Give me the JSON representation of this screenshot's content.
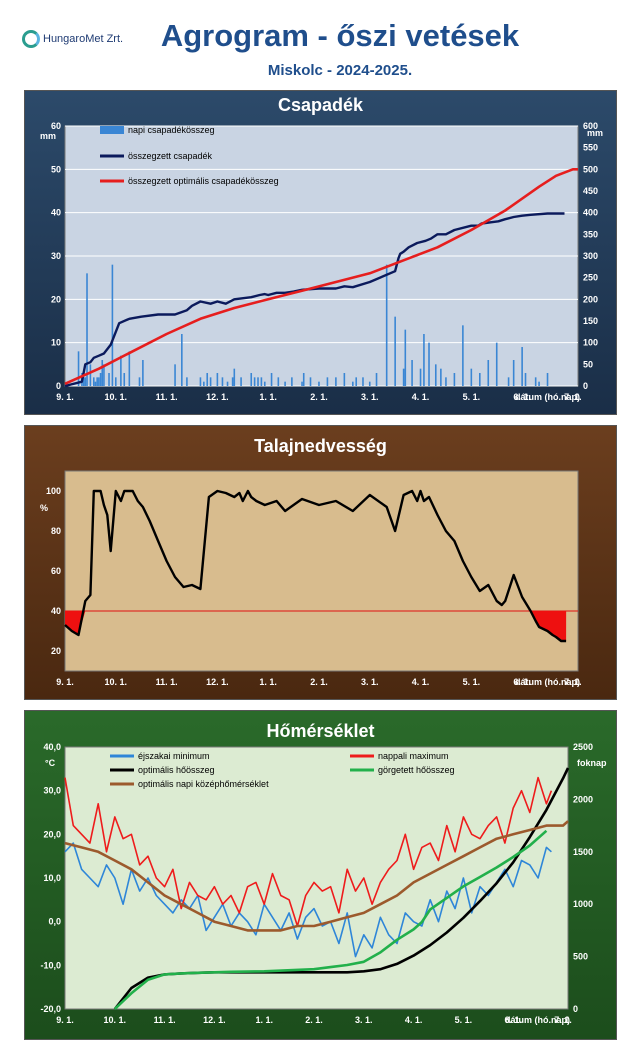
{
  "header": {
    "logo_text": "HungaroMet Zrt.",
    "title": "Agrogram - őszi vetések",
    "subtitle": "Miskolc  - 2024-2025."
  },
  "x_axis": {
    "ticks": [
      "9. 1.",
      "10. 1.",
      "11. 1.",
      "12. 1.",
      "1. 1.",
      "2. 1.",
      "3. 1.",
      "4. 1.",
      "5. 1.",
      "6. 1.",
      "7. 1."
    ],
    "label": "dátum (hó.nap)"
  },
  "chart_data": [
    {
      "type": "bar",
      "title": "Csapadék",
      "ylabel": "mm",
      "y2label": "mm",
      "ylim": [
        0,
        60
      ],
      "y2lim": [
        0,
        600
      ],
      "yticks": [
        "0",
        "10",
        "20",
        "30",
        "40",
        "50",
        "60"
      ],
      "y2ticks": [
        "0",
        "50",
        "100",
        "150",
        "200",
        "250",
        "300",
        "350",
        "400",
        "450",
        "500",
        "550",
        "600"
      ],
      "xlim": [
        0,
        303
      ],
      "series": [
        {
          "name": "napi csapadékösszeg",
          "kind": "bar",
          "axis": "left",
          "color": "#3a86d4",
          "x": [
            8,
            10,
            11,
            12,
            13,
            15,
            17,
            18,
            19,
            20,
            21,
            22,
            23,
            26,
            28,
            30,
            33,
            35,
            38,
            44,
            46,
            65,
            69,
            72,
            80,
            82,
            84,
            86,
            90,
            93,
            96,
            99,
            100,
            104,
            110,
            112,
            114,
            116,
            118,
            122,
            126,
            130,
            134,
            140,
            141,
            145,
            150,
            155,
            160,
            165,
            170,
            172,
            176,
            180,
            184,
            190,
            195,
            200,
            201,
            205,
            210,
            212,
            215,
            219,
            222,
            225,
            230,
            235,
            240,
            245,
            250,
            255,
            262,
            265,
            270,
            272,
            278,
            280,
            285
          ],
          "y": [
            8,
            3,
            2,
            2,
            26,
            5,
            2,
            1,
            2,
            2,
            3,
            6,
            5,
            3,
            28,
            2,
            7,
            3,
            8,
            2,
            6,
            5,
            12,
            2,
            2,
            1,
            3,
            2,
            3,
            2,
            1,
            2,
            4,
            2,
            3,
            2,
            2,
            2,
            1,
            3,
            2,
            1,
            2,
            1,
            3,
            2,
            1,
            2,
            2,
            3,
            1,
            2,
            2,
            1,
            3,
            28,
            16,
            4,
            13,
            6,
            4,
            12,
            10,
            5,
            4,
            2,
            3,
            14,
            4,
            3,
            6,
            10,
            2,
            6,
            9,
            3,
            2,
            1,
            3
          ]
        },
        {
          "name": "összegzett csapadék",
          "kind": "line",
          "axis": "right",
          "color": "#0b1a5c",
          "x": [
            0,
            10,
            12,
            15,
            17,
            20,
            23,
            27,
            32,
            38,
            45,
            55,
            65,
            72,
            75,
            80,
            86,
            90,
            95,
            100,
            110,
            115,
            118,
            120,
            125,
            130,
            135,
            140,
            150,
            160,
            165,
            170,
            180,
            195,
            197,
            198,
            200,
            203,
            208,
            213,
            216,
            220,
            225,
            230,
            240,
            244,
            246,
            252,
            256,
            260,
            265,
            270,
            275,
            285,
            295
          ],
          "y": [
            0,
            10,
            50,
            55,
            65,
            70,
            75,
            95,
            145,
            155,
            160,
            165,
            165,
            175,
            185,
            195,
            190,
            195,
            190,
            200,
            205,
            210,
            212,
            210,
            215,
            215,
            218,
            222,
            225,
            225,
            230,
            228,
            240,
            265,
            295,
            305,
            310,
            320,
            330,
            335,
            340,
            350,
            350,
            360,
            370,
            370,
            375,
            378,
            380,
            385,
            390,
            393,
            395,
            398,
            398
          ]
        },
        {
          "name": "összegzett optimális csapadékösszeg",
          "kind": "line",
          "axis": "right",
          "color": "#e61e1e",
          "x": [
            0,
            20,
            40,
            60,
            80,
            100,
            120,
            140,
            160,
            180,
            200,
            220,
            240,
            260,
            280,
            290,
            300,
            303
          ],
          "y": [
            5,
            40,
            80,
            120,
            155,
            180,
            200,
            220,
            240,
            260,
            290,
            320,
            360,
            405,
            460,
            485,
            500,
            500
          ]
        }
      ]
    },
    {
      "type": "line",
      "title": "Talajnedvesség",
      "ylabel": "%",
      "ylim": [
        10,
        110
      ],
      "yticks": [
        "20",
        "40",
        "60",
        "80",
        "100"
      ],
      "xlim": [
        0,
        303
      ],
      "threshold": 40,
      "series": [
        {
          "name": "talajnedvesség",
          "color": "#000000",
          "x": [
            0,
            4,
            8,
            12,
            15,
            17,
            19,
            21,
            23,
            25,
            27,
            30,
            33,
            35,
            37,
            40,
            43,
            46,
            50,
            55,
            60,
            65,
            70,
            75,
            80,
            85,
            90,
            95,
            100,
            103,
            105,
            108,
            110,
            113,
            118,
            125,
            130,
            140,
            150,
            160,
            170,
            180,
            190,
            195,
            200,
            205,
            208,
            210,
            212,
            215,
            220,
            225,
            230,
            235,
            240,
            245,
            250,
            255,
            258,
            260,
            265,
            270,
            275,
            278,
            280,
            285,
            288,
            290,
            293,
            296
          ],
          "y": [
            33,
            30,
            28,
            45,
            48,
            100,
            100,
            100,
            93,
            88,
            70,
            100,
            95,
            100,
            100,
            100,
            95,
            92,
            85,
            75,
            65,
            57,
            52,
            53,
            51,
            97,
            100,
            99,
            97,
            99,
            95,
            100,
            97,
            95,
            93,
            95,
            90,
            96,
            93,
            95,
            90,
            98,
            92,
            80,
            98,
            100,
            95,
            100,
            95,
            97,
            88,
            80,
            75,
            65,
            57,
            50,
            53,
            45,
            43,
            45,
            58,
            47,
            40,
            35,
            32,
            30,
            28,
            27,
            25,
            25
          ]
        }
      ]
    },
    {
      "type": "line",
      "title": "Hőmérséklet",
      "ylabel": "°C",
      "y2label": "foknap",
      "ylim": [
        -20,
        40
      ],
      "y2lim": [
        0,
        2500
      ],
      "yticks": [
        "-20,0",
        "-10,0",
        "0,0",
        "10,0",
        "20,0",
        "30,0",
        "40,0"
      ],
      "y2ticks": [
        "0",
        "500",
        "1000",
        "1500",
        "2000",
        "2500"
      ],
      "xlim": [
        0,
        303
      ],
      "series": [
        {
          "name": "éjszakai minimum",
          "axis": "left",
          "color": "#2e86d8",
          "x": [
            0,
            5,
            10,
            15,
            20,
            25,
            30,
            35,
            40,
            45,
            50,
            55,
            60,
            65,
            70,
            75,
            80,
            85,
            90,
            95,
            100,
            105,
            110,
            115,
            120,
            125,
            130,
            135,
            140,
            145,
            150,
            155,
            160,
            165,
            170,
            175,
            180,
            185,
            190,
            195,
            200,
            205,
            210,
            215,
            220,
            225,
            230,
            235,
            240,
            245,
            250,
            255,
            260,
            265,
            270,
            275,
            280,
            285,
            290,
            293
          ],
          "y": [
            16,
            18,
            12,
            10,
            8,
            13,
            10,
            4,
            12,
            7,
            10,
            6,
            4,
            2,
            5,
            3,
            6,
            -2,
            1,
            4,
            -1,
            2,
            0,
            -3,
            4,
            1,
            -2,
            2,
            -4,
            1,
            3,
            -1,
            0,
            -5,
            2,
            -8,
            -3,
            -6,
            1,
            -3,
            -5,
            2,
            0,
            -1,
            5,
            0,
            7,
            3,
            10,
            2,
            8,
            6,
            9,
            12,
            8,
            14,
            13,
            10,
            17,
            16
          ]
        },
        {
          "name": "nappali maximum",
          "axis": "left",
          "color": "#ee1c1c",
          "x": [
            0,
            5,
            10,
            15,
            20,
            25,
            30,
            35,
            40,
            45,
            50,
            55,
            60,
            65,
            70,
            75,
            80,
            85,
            90,
            95,
            100,
            105,
            110,
            115,
            120,
            125,
            130,
            135,
            140,
            145,
            150,
            155,
            160,
            165,
            170,
            175,
            180,
            185,
            190,
            195,
            200,
            205,
            210,
            215,
            220,
            225,
            230,
            235,
            240,
            245,
            250,
            255,
            260,
            265,
            270,
            275,
            280,
            285,
            290,
            293
          ],
          "y": [
            33,
            22,
            20,
            18,
            27,
            16,
            24,
            19,
            20,
            13,
            15,
            10,
            8,
            12,
            3,
            9,
            6,
            5,
            8,
            4,
            6,
            2,
            8,
            9,
            4,
            11,
            6,
            5,
            -1,
            6,
            9,
            7,
            8,
            2,
            12,
            7,
            10,
            4,
            9,
            12,
            14,
            20,
            12,
            17,
            18,
            14,
            22,
            16,
            24,
            20,
            19,
            22,
            24,
            18,
            26,
            30,
            25,
            33,
            27,
            30
          ]
        },
        {
          "name": "optimális hőösszeg",
          "axis": "right",
          "color": "#000000",
          "x": [
            30,
            40,
            50,
            60,
            70,
            80,
            90,
            100,
            120,
            150,
            170,
            180,
            190,
            200,
            210,
            220,
            230,
            240,
            250,
            260,
            270,
            280,
            290,
            300,
            303
          ],
          "y": [
            0,
            200,
            300,
            330,
            340,
            345,
            350,
            350,
            350,
            350,
            350,
            360,
            380,
            430,
            510,
            610,
            730,
            870,
            1030,
            1200,
            1400,
            1640,
            1900,
            2200,
            2300
          ]
        },
        {
          "name": "görgetett hőösszeg",
          "axis": "right",
          "color": "#22b04b",
          "x": [
            30,
            40,
            50,
            60,
            70,
            80,
            90,
            100,
            120,
            150,
            160,
            170,
            180,
            190,
            200,
            210,
            215,
            220,
            230,
            240,
            250,
            260,
            270,
            280,
            290
          ],
          "y": [
            0,
            150,
            280,
            330,
            340,
            345,
            350,
            355,
            360,
            380,
            400,
            420,
            450,
            540,
            660,
            760,
            830,
            950,
            1060,
            1170,
            1260,
            1350,
            1450,
            1560,
            1700
          ]
        },
        {
          "name": "optimális napi középhőmérséklet",
          "axis": "left",
          "color": "#9c5a2d",
          "x": [
            0,
            10,
            20,
            30,
            40,
            50,
            60,
            70,
            80,
            90,
            100,
            110,
            120,
            130,
            140,
            150,
            160,
            170,
            180,
            190,
            200,
            210,
            220,
            230,
            240,
            250,
            260,
            270,
            280,
            290,
            300,
            303
          ],
          "y": [
            18,
            17,
            16,
            14,
            12,
            9,
            6,
            4,
            2,
            0,
            -1,
            -2,
            -2,
            -2,
            -1,
            -1,
            0,
            1,
            2,
            4,
            6,
            9,
            11,
            13,
            15,
            17,
            19,
            20,
            21,
            22,
            22,
            23
          ]
        }
      ]
    }
  ]
}
